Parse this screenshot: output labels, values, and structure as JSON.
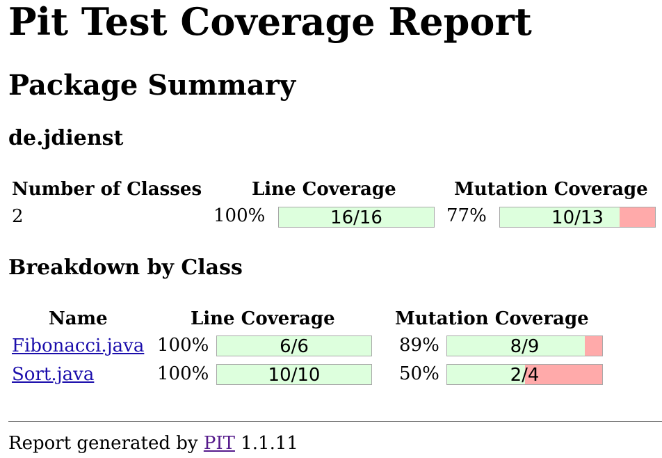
{
  "title": "Pit Test Coverage Report",
  "package_summary": {
    "heading": "Package Summary",
    "package_name": "de.jdienst",
    "headers": {
      "classes": "Number of Classes",
      "line": "Line Coverage",
      "mutation": "Mutation Coverage"
    },
    "row": {
      "classes": "2",
      "line_pct": "100%",
      "line_ratio": "16/16",
      "line_fraction": 1.0,
      "mutation_pct": "77%",
      "mutation_ratio": "10/13",
      "mutation_fraction": 0.77
    }
  },
  "breakdown": {
    "heading": "Breakdown by Class",
    "headers": {
      "name": "Name",
      "line": "Line Coverage",
      "mutation": "Mutation Coverage"
    },
    "rows": [
      {
        "name": "Fibonacci.java",
        "line_pct": "100%",
        "line_ratio": "6/6",
        "line_fraction": 1.0,
        "mutation_pct": "89%",
        "mutation_ratio": "8/9",
        "mutation_fraction": 0.89
      },
      {
        "name": "Sort.java",
        "line_pct": "100%",
        "line_ratio": "10/10",
        "line_fraction": 1.0,
        "mutation_pct": "50%",
        "mutation_ratio": "2/4",
        "mutation_fraction": 0.5
      }
    ]
  },
  "footer": {
    "prefix": "Report generated by",
    "link": "PIT",
    "version": "1.1.11"
  },
  "colors": {
    "covered": "#ddffdd",
    "uncovered": "#ffaaaa",
    "link": "#1a0dab",
    "visited_link": "#551a8b"
  }
}
